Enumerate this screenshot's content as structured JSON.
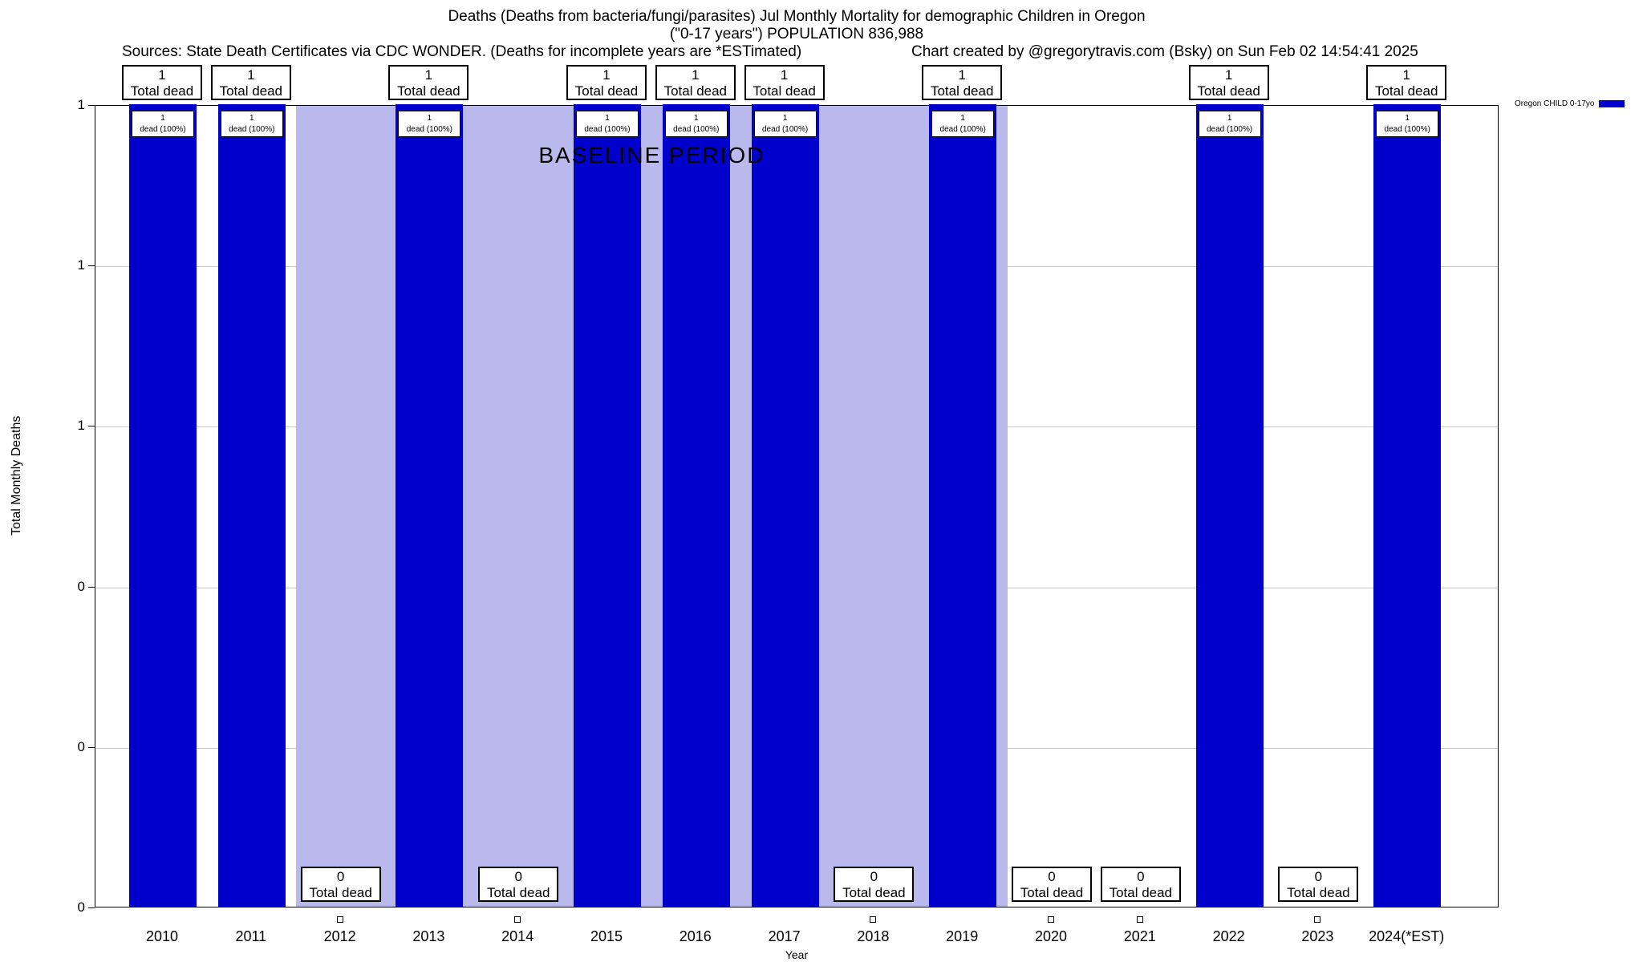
{
  "header": {
    "title_line1": "Deaths (Deaths from bacteria/fungi/parasites) Jul Monthly Mortality for demographic Children in Oregon",
    "title_line2": "(\"0-17 years\") POPULATION 836,988",
    "sources": "Sources: State Death Certificates via CDC WONDER. (Deaths for incomplete years are *ESTimated)",
    "credit": "Chart created by @gregorytravis.com (Bsky) on Sun Feb 02 14:54:41 2025"
  },
  "chart_data": {
    "type": "bar",
    "title": "Deaths (Deaths from bacteria/fungi/parasites) Jul Monthly Mortality for demographic Children in Oregon (\"0-17 years\") POPULATION 836,988",
    "xlabel": "Year",
    "ylabel": "Total Monthly Deaths",
    "ylim": [
      0,
      1
    ],
    "grid": true,
    "ytick_labels_top_to_bottom": [
      "1",
      "1",
      "1",
      "0",
      "0",
      "0"
    ],
    "categories": [
      "2010",
      "2011",
      "2012",
      "2013",
      "2014",
      "2015",
      "2016",
      "2017",
      "2018",
      "2019",
      "2020",
      "2021",
      "2022",
      "2023",
      "2024(*EST)"
    ],
    "series": [
      {
        "name": "Oregon CHILD 0-17yo",
        "color": "#0000cc",
        "values": [
          1,
          1,
          0,
          1,
          0,
          1,
          1,
          1,
          0,
          1,
          0,
          0,
          1,
          0,
          1
        ]
      }
    ],
    "annotation_one": {
      "line1": "1",
      "line2": "Total dead"
    },
    "annotation_one_inbar": {
      "line1": "1",
      "line2": "dead (100%)"
    },
    "annotation_zero": {
      "line1": "0",
      "line2": "Total dead"
    },
    "baseline": {
      "label": "BASELINE PERIOD",
      "from_category": "2012",
      "to_category": "2019",
      "color": "#b9b9ee"
    },
    "legend": {
      "label": "Oregon CHILD 0-17yo",
      "color": "#0000cc",
      "position": "top-right"
    }
  }
}
